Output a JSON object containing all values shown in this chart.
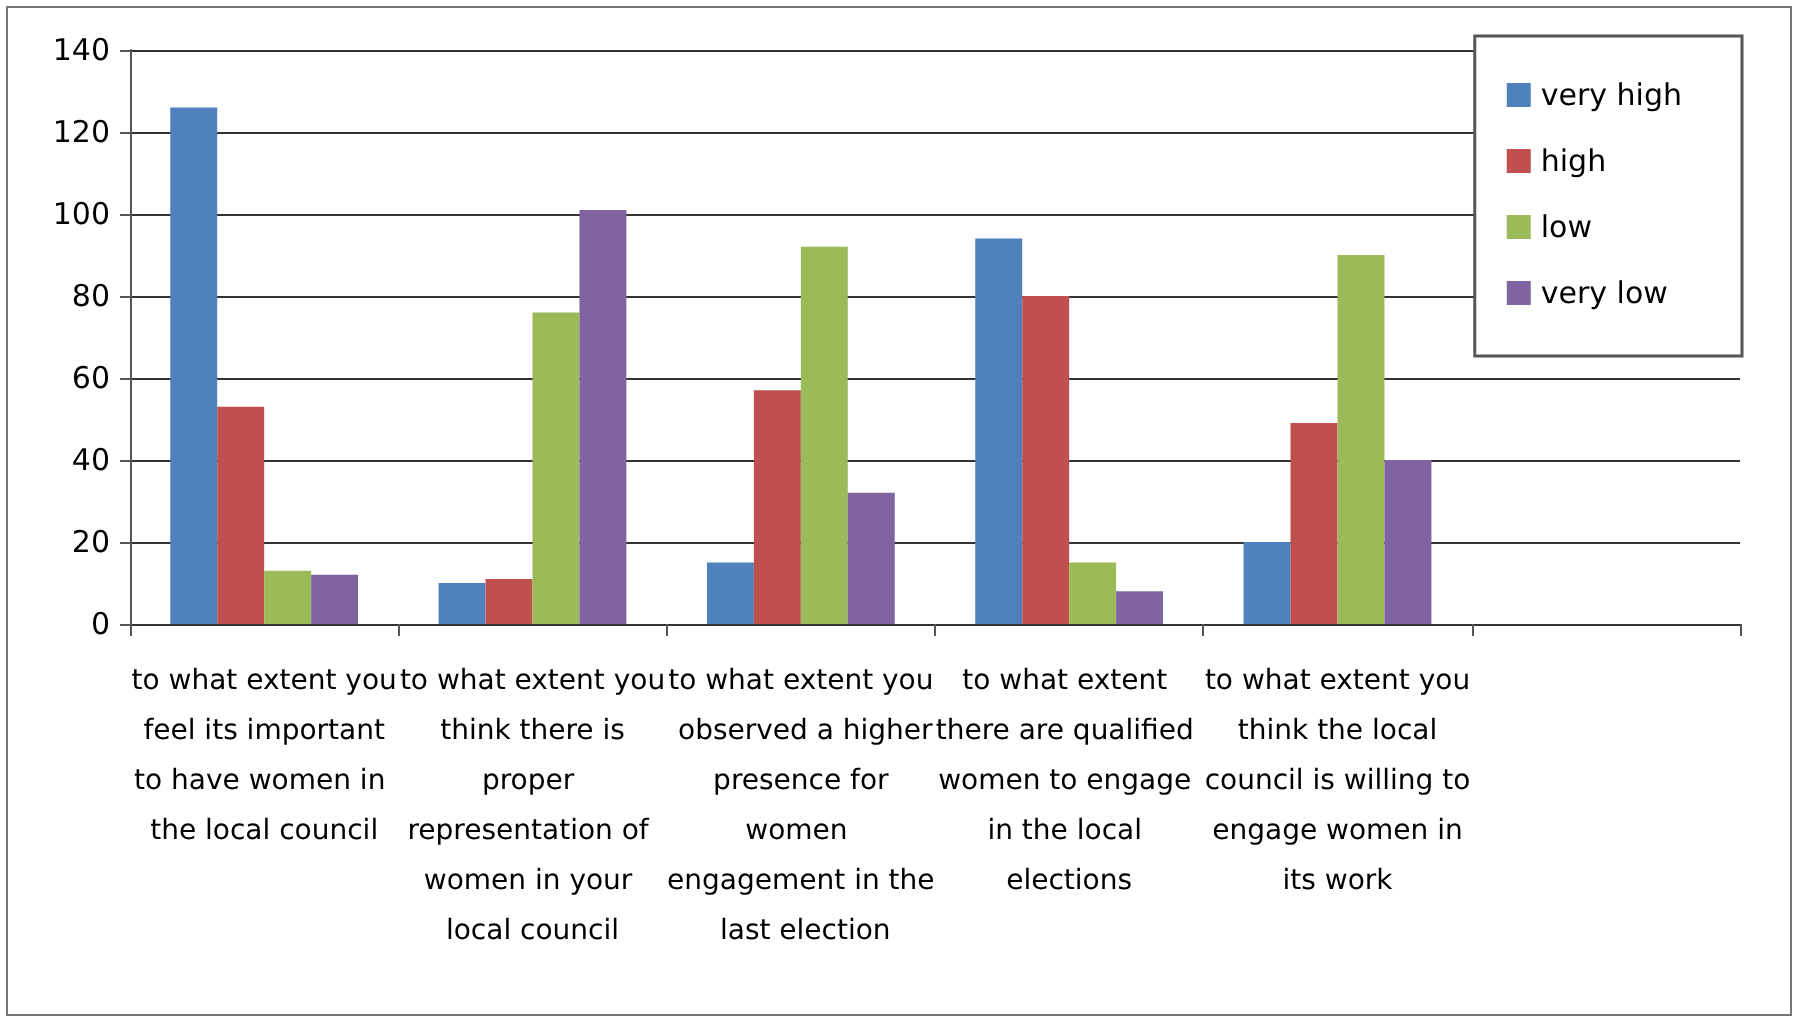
{
  "chart_data": {
    "type": "bar",
    "categories": [
      "to what extent you feel its important to have women in the local council",
      "to what extent you think there is proper representation of women in your local council",
      "to what extent you observed a higher presence for women engagement in the last election",
      "to what extent there are qualified women to engage in the local elections",
      "to what extent you think the local council is willing to engage women in its work",
      null
    ],
    "series": [
      {
        "name": "very high",
        "color": "#4f81bd",
        "values": [
          126,
          10,
          15,
          94,
          20,
          null
        ]
      },
      {
        "name": "high",
        "color": "#c0504d",
        "values": [
          53,
          11,
          57,
          80,
          49,
          null
        ]
      },
      {
        "name": "low",
        "color": "#9bbb59",
        "values": [
          13,
          76,
          92,
          15,
          90,
          null
        ]
      },
      {
        "name": "very low",
        "color": "#8064a2",
        "values": [
          12,
          101,
          32,
          8,
          40,
          null
        ]
      }
    ],
    "ylim": [
      0,
      140
    ],
    "yticks": [
      0,
      20,
      40,
      60,
      80,
      100,
      120,
      140
    ],
    "grid": "y",
    "legend": "top right"
  }
}
